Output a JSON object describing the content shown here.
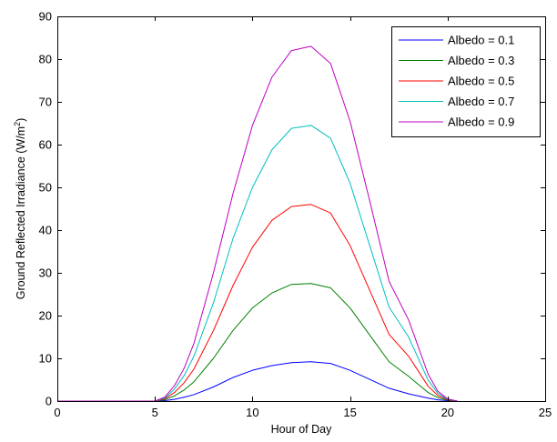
{
  "chart_data": {
    "type": "line",
    "title": "",
    "xlabel": "Hour of Day",
    "ylabel": "Ground Reflected Irradiance (W/m",
    "ylabel_superscript": "2",
    "ylabel_suffix": ")",
    "xlim": [
      0,
      25
    ],
    "ylim": [
      0,
      90
    ],
    "xticks": [
      0,
      5,
      10,
      15,
      20,
      25
    ],
    "yticks": [
      0,
      10,
      20,
      30,
      40,
      50,
      60,
      70,
      80,
      90
    ],
    "xtick_labels": [
      "0",
      "5",
      "10",
      "15",
      "20",
      "25"
    ],
    "ytick_labels": [
      "0",
      "10",
      "20",
      "30",
      "40",
      "50",
      "60",
      "70",
      "80",
      "90"
    ],
    "grid": false,
    "legend_position": "top-right",
    "x": [
      0,
      0.5,
      5,
      5.5,
      6,
      6.5,
      7,
      8,
      9,
      10,
      11,
      12,
      13,
      14,
      15,
      16,
      17,
      18,
      19,
      19.5,
      20,
      20.5
    ],
    "series": [
      {
        "name": "Albedo = 0.1",
        "color": "#0000ff",
        "values": [
          0,
          0,
          0,
          0.1,
          0.4,
          0.9,
          1.5,
          3.3,
          5.5,
          7.2,
          8.3,
          9.0,
          9.2,
          8.8,
          7.2,
          5.1,
          3.0,
          1.7,
          0.7,
          0.3,
          0.1,
          0
        ]
      },
      {
        "name": "Albedo = 0.3",
        "color": "#008000",
        "values": [
          0,
          0,
          0,
          0.3,
          1.2,
          2.6,
          4.5,
          10.0,
          16.5,
          21.8,
          25.3,
          27.3,
          27.5,
          26.5,
          21.8,
          15.5,
          9.2,
          5.8,
          2.0,
          0.8,
          0.2,
          0
        ]
      },
      {
        "name": "Albedo = 0.5",
        "color": "#ff0000",
        "values": [
          0,
          0,
          0,
          0.5,
          2.0,
          4.3,
          7.5,
          16.5,
          27.0,
          36.0,
          42.3,
          45.5,
          46.0,
          44.0,
          36.4,
          26.0,
          15.6,
          10.5,
          3.5,
          1.3,
          0.3,
          0
        ]
      },
      {
        "name": "Albedo = 0.7",
        "color": "#00bfbf",
        "values": [
          0,
          0,
          0,
          0.7,
          2.8,
          6.0,
          10.5,
          23.0,
          38.0,
          50.0,
          58.8,
          63.8,
          64.5,
          61.5,
          51.0,
          36.5,
          22.0,
          15.0,
          4.9,
          1.8,
          0.4,
          0
        ]
      },
      {
        "name": "Albedo = 0.9",
        "color": "#bf00bf",
        "values": [
          0,
          0,
          0,
          0.9,
          3.6,
          7.7,
          13.5,
          30.0,
          48.5,
          64.5,
          75.8,
          82.0,
          83.0,
          79.0,
          65.5,
          47.0,
          28.0,
          19.0,
          6.3,
          2.3,
          0.5,
          0
        ]
      }
    ]
  }
}
